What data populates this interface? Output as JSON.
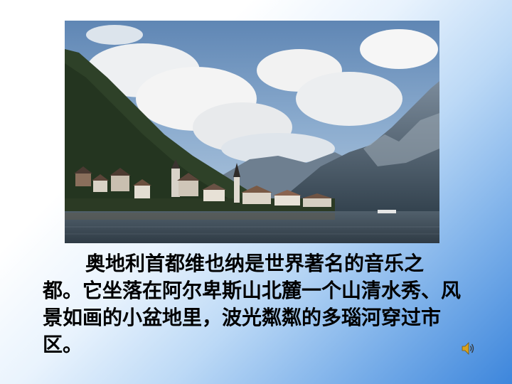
{
  "slide": {
    "paragraph": "奥地利首都维也纳是世界著名的音乐之都。它坐落在阿尔卑斯山北麓一个山清水秀、风景如画的小盆地里，波光粼粼的多瑙河穿过市区。"
  },
  "photo": {
    "subject": "lakeside village beneath mountains"
  },
  "icons": {
    "sound": "speaker-icon"
  },
  "colors": {
    "background_start": "#ffffff",
    "background_end": "#3d86dc",
    "text": "#000000"
  }
}
